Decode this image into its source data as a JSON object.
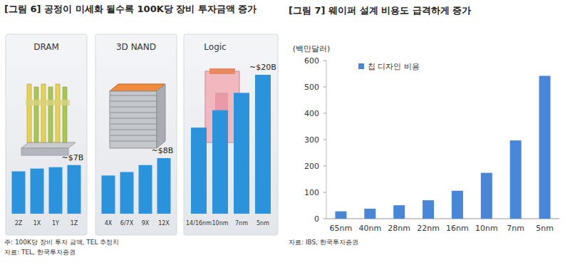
{
  "figures": [
    {
      "title": "[그림 6] 공정이 미세화 될수록 100K당 장비 투자금액 증가",
      "note": "주: 100K당 장비 투자 금액, TEL 추정치",
      "source": "자료: TEL, 한국투자증권"
    },
    {
      "title": "[그림 7] 웨이퍼 설계 비용도 급격하게 증가",
      "source": "자료: IBS, 한국투자증권"
    }
  ],
  "chart_data": [
    {
      "type": "bar",
      "title": "DRAM",
      "categories": [
        "2Z",
        "1X",
        "1Y",
        "1Z"
      ],
      "values": [
        6.1,
        6.5,
        6.7,
        7
      ],
      "annotation": "~$7B",
      "color": "#2b93dc",
      "tick_labels": "x",
      "grid": false
    },
    {
      "type": "bar",
      "title": "3D NAND",
      "categories": [
        "4X",
        "6/7X",
        "9X",
        "12X"
      ],
      "values": [
        5.5,
        6.0,
        7.0,
        8.0
      ],
      "annotation": "~$8B",
      "color": "#2b93dc",
      "tick_labels": "x",
      "grid": false
    },
    {
      "type": "bar",
      "title": "Logic",
      "categories": [
        "14/16nm",
        "10nm",
        "7nm",
        "5nm"
      ],
      "values": [
        12.4,
        14.9,
        17.4,
        20
      ],
      "annotation": "~$20B",
      "color": "#2b93dc",
      "tick_labels": "x",
      "grid": false
    },
    {
      "type": "bar",
      "y_label": "(백만달러)",
      "categories": [
        "65nm",
        "40nm",
        "28nm",
        "22nm",
        "16nm",
        "10nm",
        "7nm",
        "5nm"
      ],
      "series": [
        {
          "name": "칩 디자인 비용",
          "color": "#4a86d8",
          "values": [
            28,
            38,
            51,
            70,
            106,
            174,
            297,
            542
          ]
        }
      ],
      "ylim": [
        0,
        600
      ],
      "yticks": [
        0,
        100,
        200,
        300,
        400,
        500,
        600
      ],
      "grid": false,
      "legend": "top-left"
    }
  ]
}
